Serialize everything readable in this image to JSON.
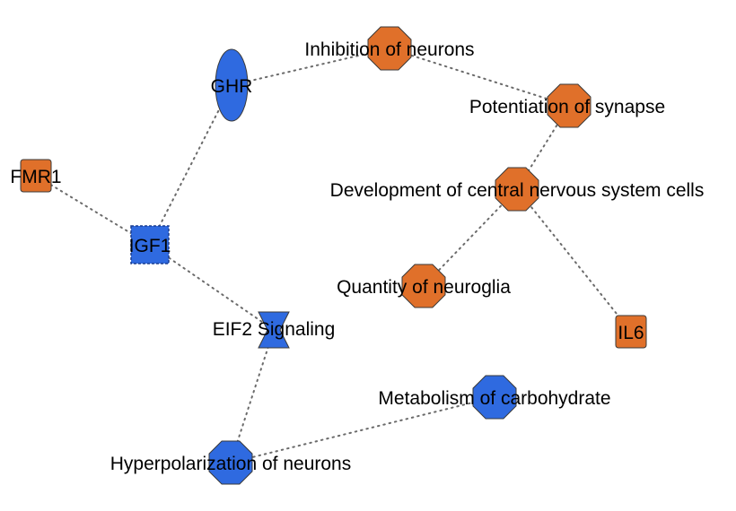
{
  "colors": {
    "up": "#e0702a",
    "down": "#2f6ae0",
    "edge": "#6b6b6b",
    "text": "#000000"
  },
  "nodes": [
    {
      "id": "ghr",
      "label": "GHR",
      "shape": "ellipse",
      "status": "down"
    },
    {
      "id": "inhibition",
      "label": "Inhibition of neurons",
      "shape": "octagon",
      "status": "up"
    },
    {
      "id": "potentiation",
      "label": "Potentiation of synapse",
      "shape": "octagon",
      "status": "up"
    },
    {
      "id": "development",
      "label": "Development of central nervous system cells",
      "shape": "octagon",
      "status": "up"
    },
    {
      "id": "fmr1",
      "label": "FMR1",
      "shape": "rounded-square",
      "status": "up"
    },
    {
      "id": "igf1",
      "label": "IGF1",
      "shape": "square",
      "status": "down"
    },
    {
      "id": "quantity",
      "label": "Quantity of neuroglia",
      "shape": "octagon",
      "status": "up"
    },
    {
      "id": "il6",
      "label": "IL6",
      "shape": "rounded-square",
      "status": "up"
    },
    {
      "id": "eif2",
      "label": "EIF2 Signaling",
      "shape": "hourglass",
      "status": "down"
    },
    {
      "id": "metabolism",
      "label": "Metabolism of carbohydrate",
      "shape": "octagon",
      "status": "down"
    },
    {
      "id": "hyperpolarization",
      "label": "Hyperpolarization of neurons",
      "shape": "octagon",
      "status": "down"
    }
  ],
  "edges": [
    {
      "from": "ghr",
      "to": "inhibition"
    },
    {
      "from": "ghr",
      "to": "igf1"
    },
    {
      "from": "inhibition",
      "to": "potentiation"
    },
    {
      "from": "potentiation",
      "to": "development"
    },
    {
      "from": "development",
      "to": "quantity"
    },
    {
      "from": "development",
      "to": "il6"
    },
    {
      "from": "fmr1",
      "to": "igf1"
    },
    {
      "from": "igf1",
      "to": "eif2"
    },
    {
      "from": "eif2",
      "to": "hyperpolarization"
    },
    {
      "from": "hyperpolarization",
      "to": "metabolism"
    }
  ]
}
